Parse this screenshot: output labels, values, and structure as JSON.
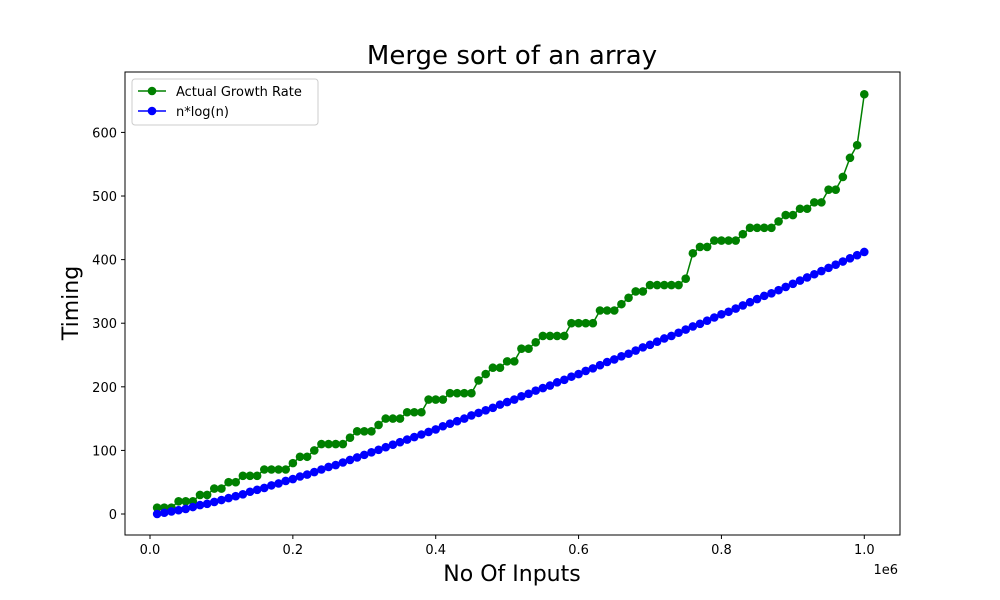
{
  "chart_data": {
    "type": "line",
    "title": "Merge sort of an array",
    "xlabel": "No Of Inputs",
    "ylabel": "Timing",
    "x_offset_label": "1e6",
    "xlim": [
      -0.035,
      1.05
    ],
    "ylim": [
      -33,
      695
    ],
    "x_ticks": [
      0.0,
      0.2,
      0.4,
      0.6,
      0.8,
      1.0
    ],
    "x_tick_labels": [
      "0.0",
      "0.2",
      "0.4",
      "0.6",
      "0.8",
      "1.0"
    ],
    "y_ticks": [
      0,
      100,
      200,
      300,
      400,
      500,
      600
    ],
    "y_tick_labels": [
      "0",
      "100",
      "200",
      "300",
      "400",
      "500",
      "600"
    ],
    "grid": false,
    "legend_position": "top-left",
    "x": [
      0.01,
      0.02,
      0.03,
      0.04,
      0.05,
      0.06,
      0.07,
      0.08,
      0.09,
      0.1,
      0.11,
      0.12,
      0.13,
      0.14,
      0.15,
      0.16,
      0.17,
      0.18,
      0.19,
      0.2,
      0.21,
      0.22,
      0.23,
      0.24,
      0.25,
      0.26,
      0.27,
      0.28,
      0.29,
      0.3,
      0.31,
      0.32,
      0.33,
      0.34,
      0.35,
      0.36,
      0.37,
      0.38,
      0.39,
      0.4,
      0.41,
      0.42,
      0.43,
      0.44,
      0.45,
      0.46,
      0.47,
      0.48,
      0.49,
      0.5,
      0.51,
      0.52,
      0.53,
      0.54,
      0.55,
      0.56,
      0.57,
      0.58,
      0.59,
      0.6,
      0.61,
      0.62,
      0.63,
      0.64,
      0.65,
      0.66,
      0.67,
      0.68,
      0.69,
      0.7,
      0.71,
      0.72,
      0.73,
      0.74,
      0.75,
      0.76,
      0.77,
      0.78,
      0.79,
      0.8,
      0.81,
      0.82,
      0.83,
      0.84,
      0.85,
      0.86,
      0.87,
      0.88,
      0.89,
      0.9,
      0.91,
      0.92,
      0.93,
      0.94,
      0.95,
      0.96,
      0.97,
      0.98,
      0.99,
      1.0
    ],
    "series": [
      {
        "name": "Actual Growth Rate",
        "color": "#008000",
        "values": [
          10,
          10,
          10,
          20,
          20,
          20,
          30,
          30,
          40,
          40,
          50,
          50,
          60,
          60,
          60,
          70,
          70,
          70,
          70,
          80,
          90,
          90,
          100,
          110,
          110,
          110,
          110,
          120,
          130,
          130,
          130,
          140,
          150,
          150,
          150,
          160,
          160,
          160,
          180,
          180,
          180,
          190,
          190,
          190,
          190,
          210,
          220,
          230,
          230,
          240,
          240,
          260,
          260,
          270,
          280,
          280,
          280,
          280,
          300,
          300,
          300,
          300,
          320,
          320,
          320,
          330,
          340,
          350,
          350,
          360,
          360,
          360,
          360,
          360,
          370,
          410,
          420,
          420,
          430,
          430,
          430,
          430,
          440,
          450,
          450,
          450,
          450,
          460,
          470,
          470,
          480,
          480,
          490,
          490,
          510,
          510,
          530,
          560,
          580,
          660
        ]
      },
      {
        "name": "n*log(n)",
        "color": "#0000ff",
        "values": [
          0,
          2,
          4,
          6,
          8,
          11,
          14,
          16,
          19,
          22,
          25,
          28,
          31,
          35,
          38,
          41,
          45,
          48,
          52,
          55,
          59,
          62,
          66,
          70,
          74,
          77,
          81,
          85,
          89,
          93,
          97,
          101,
          105,
          109,
          113,
          117,
          121,
          125,
          129,
          133,
          138,
          142,
          146,
          150,
          155,
          159,
          163,
          167,
          172,
          176,
          180,
          185,
          189,
          194,
          198,
          202,
          207,
          211,
          216,
          220,
          225,
          229,
          234,
          239,
          243,
          248,
          252,
          257,
          262,
          266,
          271,
          276,
          280,
          285,
          290,
          295,
          299,
          304,
          309,
          314,
          318,
          323,
          328,
          333,
          338,
          343,
          347,
          352,
          357,
          362,
          367,
          372,
          377,
          382,
          387,
          392,
          397,
          402,
          407,
          412
        ]
      }
    ]
  }
}
